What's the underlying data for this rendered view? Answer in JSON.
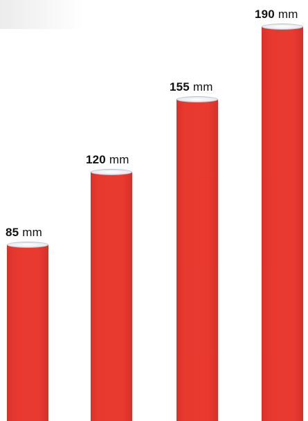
{
  "tubes": [
    {
      "value": "85",
      "unit": "mm"
    },
    {
      "value": "120",
      "unit": "mm"
    },
    {
      "value": "155",
      "unit": "mm"
    },
    {
      "value": "190",
      "unit": "mm"
    }
  ],
  "colors": {
    "tube": "#e8392f",
    "cap": "#e9eef3",
    "text": "#111111"
  }
}
